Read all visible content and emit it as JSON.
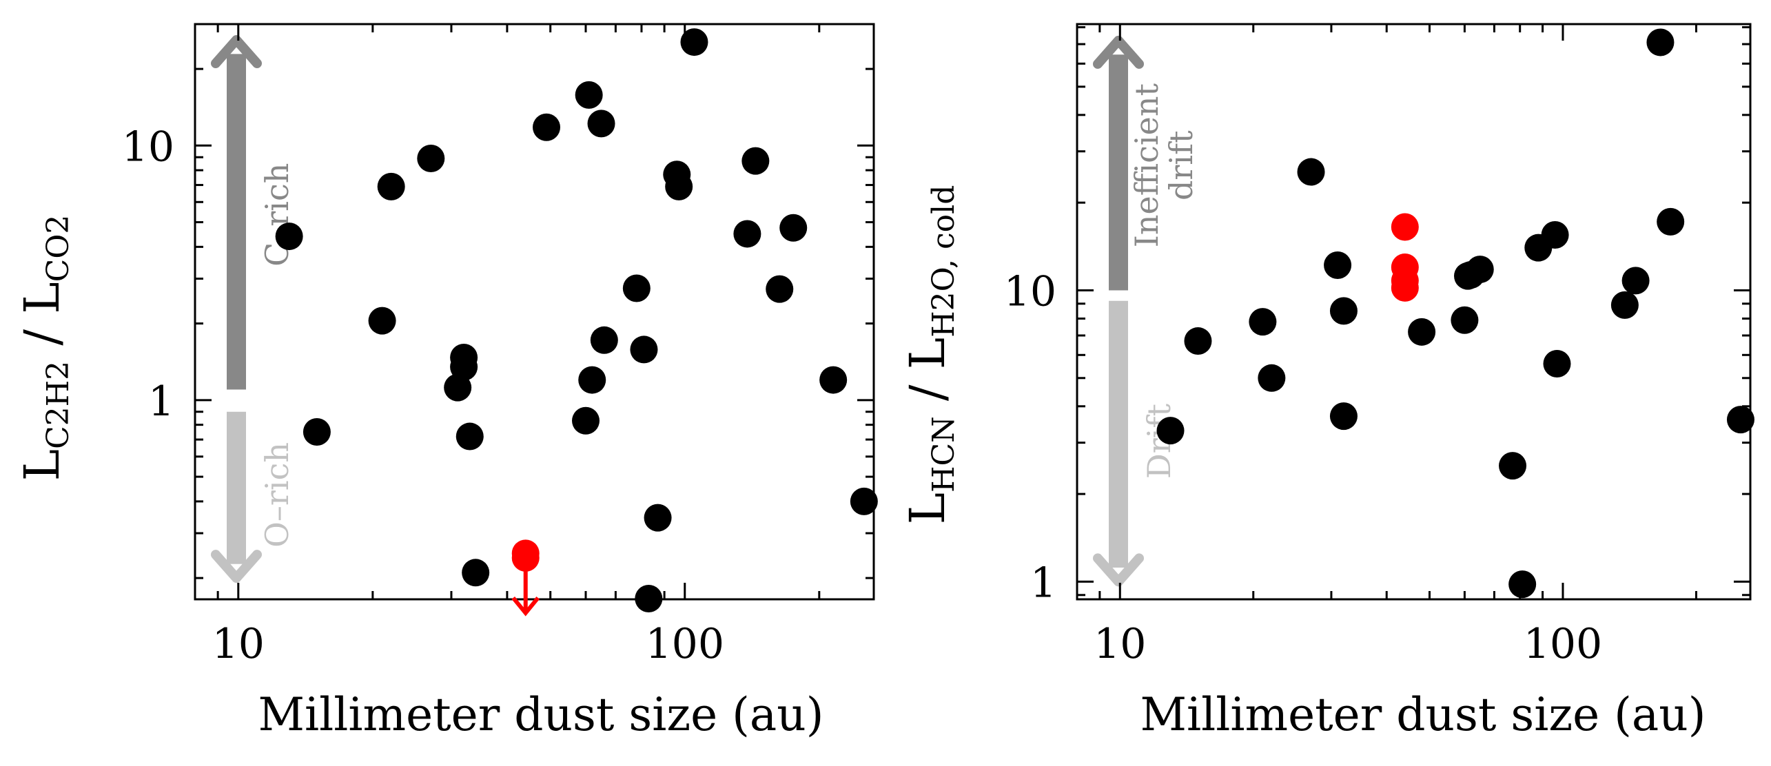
{
  "chart_data": [
    {
      "type": "scatter",
      "xlabel": "Millimeter dust size (au)",
      "ylabel_main": "L",
      "ylabel_sub1": "C2H2",
      "ylabel_sep": " / L",
      "ylabel_sub2": "CO2",
      "xscale": "log",
      "yscale": "log",
      "xlim": [
        8,
        265
      ],
      "ylim": [
        0.165,
        30
      ],
      "xticks": [
        10,
        100
      ],
      "xtick_labels": [
        "10",
        "100"
      ],
      "yticks": [
        1,
        10
      ],
      "ytick_labels": [
        "1",
        "10"
      ],
      "annotations": [
        {
          "label": "C–rich",
          "color": "#888888",
          "direction": "up",
          "y_from": 1.1,
          "y_to": 26
        },
        {
          "label": "O–rich",
          "color": "#c2c2c2",
          "direction": "down",
          "y_from": 0.9,
          "y_to": 0.2
        }
      ],
      "series": [
        {
          "color": "#000000",
          "points": [
            [
              13,
              4.4
            ],
            [
              15,
              0.75
            ],
            [
              21,
              2.05
            ],
            [
              22,
              6.9
            ],
            [
              27,
              8.9
            ],
            [
              31,
              1.12
            ],
            [
              32,
              1.35
            ],
            [
              32,
              1.47
            ],
            [
              33,
              0.72
            ],
            [
              34,
              0.21
            ],
            [
              49,
              11.8
            ],
            [
              60,
              0.83
            ],
            [
              61,
              15.8
            ],
            [
              62,
              1.2
            ],
            [
              65,
              12.2
            ],
            [
              66,
              1.72
            ],
            [
              78,
              2.75
            ],
            [
              81,
              1.58
            ],
            [
              83,
              0.166
            ],
            [
              87,
              0.345
            ],
            [
              96,
              7.7
            ],
            [
              97,
              6.9
            ],
            [
              105,
              25.5
            ],
            [
              138,
              4.5
            ],
            [
              144,
              8.7
            ],
            [
              163,
              2.73
            ],
            [
              175,
              4.75
            ],
            [
              215,
              1.2
            ],
            [
              252,
              0.4
            ]
          ]
        },
        {
          "color": "#ff0000",
          "upper_limit": true,
          "points": [
            [
              44,
              0.25
            ],
            [
              44,
              0.24
            ]
          ]
        }
      ]
    },
    {
      "type": "scatter",
      "xlabel": "Millimeter dust size (au)",
      "ylabel_main": "L",
      "ylabel_sub1": "HCN",
      "ylabel_sep": " / L",
      "ylabel_sub2": "H2O, cold",
      "xscale": "log",
      "yscale": "log",
      "xlim": [
        8,
        265
      ],
      "ylim": [
        0.87,
        82
      ],
      "xticks": [
        10,
        100
      ],
      "xtick_labels": [
        "10",
        "100"
      ],
      "yticks": [
        1,
        10
      ],
      "ytick_labels": [
        "1",
        "10"
      ],
      "annotations": [
        {
          "label": "Inefficient",
          "label2": "drift",
          "color": "#888888",
          "direction": "up",
          "y_from": 10,
          "y_to": 72
        },
        {
          "label": "Drift",
          "color": "#c2c2c2",
          "direction": "down",
          "y_from": 9.2,
          "y_to": 1
        }
      ],
      "series": [
        {
          "color": "#000000",
          "points": [
            [
              13,
              3.3
            ],
            [
              15,
              6.7
            ],
            [
              21,
              7.8
            ],
            [
              22,
              5.0
            ],
            [
              27,
              25.5
            ],
            [
              31,
              12.2
            ],
            [
              32,
              8.5
            ],
            [
              32,
              3.7
            ],
            [
              48,
              7.2
            ],
            [
              60,
              7.9
            ],
            [
              61,
              11.2
            ],
            [
              62,
              11.3
            ],
            [
              65,
              11.8
            ],
            [
              77,
              2.5
            ],
            [
              81,
              0.98
            ],
            [
              88,
              14.0
            ],
            [
              96,
              15.5
            ],
            [
              97,
              5.6
            ],
            [
              138,
              8.9
            ],
            [
              146,
              10.8
            ],
            [
              166,
              71
            ],
            [
              175,
              17.2
            ],
            [
              252,
              3.6
            ]
          ]
        },
        {
          "color": "#ff0000",
          "points": [
            [
              44,
              16.5
            ],
            [
              44,
              12.0
            ],
            [
              44,
              10.8
            ],
            [
              44,
              10.2
            ]
          ]
        }
      ]
    }
  ]
}
